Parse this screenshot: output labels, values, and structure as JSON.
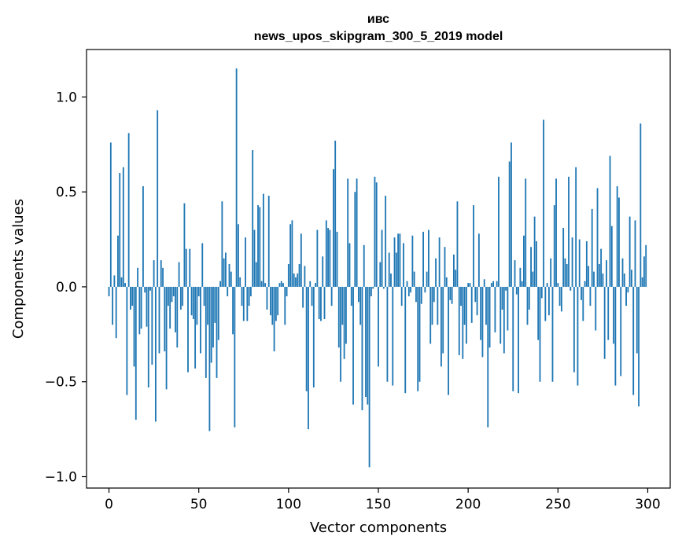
{
  "chart_data": {
    "type": "bar",
    "title_lines": [
      "ивс",
      "news_upos_skipgram_300_5_2019 model"
    ],
    "xlabel": "Vector components",
    "ylabel": "Components values",
    "xlim": [
      -12.5,
      312.5
    ],
    "ylim": [
      -1.06,
      1.25
    ],
    "xticks": [
      0,
      50,
      100,
      150,
      200,
      250,
      300
    ],
    "yticks": [
      -1.0,
      -0.5,
      0.0,
      0.5,
      1.0
    ],
    "ytick_labels": [
      "−1.0",
      "−0.5",
      "0.0",
      "0.5",
      "1.0"
    ],
    "bar_color": "#1f77b4",
    "grid": false,
    "values": [
      -0.05,
      0.76,
      -0.2,
      0.06,
      -0.27,
      0.27,
      0.6,
      0.05,
      0.63,
      0.02,
      -0.57,
      0.81,
      -0.12,
      -0.1,
      -0.42,
      -0.7,
      0.1,
      -0.25,
      -0.22,
      0.53,
      -0.03,
      -0.21,
      -0.53,
      -0.02,
      -0.41,
      0.14,
      -0.71,
      0.93,
      -0.35,
      0.14,
      0.1,
      -0.34,
      -0.54,
      -0.1,
      -0.22,
      -0.08,
      -0.05,
      -0.24,
      -0.32,
      0.13,
      -0.12,
      -0.1,
      0.44,
      0.2,
      -0.45,
      0.2,
      -0.15,
      -0.17,
      -0.43,
      -0.2,
      -0.05,
      -0.35,
      0.23,
      -0.1,
      -0.48,
      -0.2,
      -0.76,
      -0.4,
      -0.32,
      -0.19,
      -0.48,
      -0.28,
      0.03,
      0.45,
      0.15,
      0.18,
      -0.05,
      0.12,
      0.08,
      -0.25,
      -0.74,
      1.15,
      0.33,
      0.05,
      -0.1,
      -0.18,
      0.26,
      -0.18,
      -0.1,
      -0.05,
      0.72,
      0.3,
      0.13,
      0.43,
      0.42,
      0.03,
      0.49,
      0.02,
      -0.12,
      0.48,
      -0.15,
      -0.2,
      -0.34,
      -0.18,
      -0.15,
      0.02,
      0.03,
      0.02,
      -0.2,
      -0.05,
      0.12,
      0.33,
      0.35,
      0.07,
      0.05,
      0.07,
      0.12,
      0.28,
      -0.11,
      0.11,
      -0.55,
      -0.75,
      0.03,
      -0.1,
      -0.53,
      0.02,
      0.3,
      -0.17,
      -0.18,
      0.16,
      -0.17,
      0.35,
      0.31,
      0.3,
      -0.1,
      0.62,
      0.77,
      0.29,
      -0.32,
      -0.5,
      -0.2,
      -0.38,
      -0.3,
      0.57,
      0.23,
      -0.1,
      -0.62,
      0.5,
      0.57,
      -0.08,
      -0.2,
      -0.65,
      0.22,
      -0.58,
      -0.62,
      -0.95,
      -0.05,
      -0.01,
      0.58,
      0.55,
      -0.42,
      0.13,
      0.3,
      -0.01,
      0.48,
      -0.5,
      0.18,
      0.07,
      -0.52,
      0.26,
      0.18,
      0.28,
      0.28,
      -0.1,
      0.23,
      -0.56,
      0.03,
      -0.05,
      -0.03,
      0.27,
      0.08,
      -0.08,
      -0.55,
      -0.5,
      -0.09,
      0.29,
      -0.03,
      0.08,
      0.3,
      -0.3,
      -0.2,
      -0.08,
      0.15,
      -0.2,
      0.26,
      -0.42,
      -0.35,
      0.21,
      0.05,
      -0.57,
      -0.07,
      -0.09,
      0.17,
      0.09,
      0.45,
      -0.36,
      -0.1,
      -0.38,
      -0.2,
      -0.3,
      0.02,
      0.02,
      -0.19,
      0.43,
      -0.08,
      -0.15,
      0.28,
      -0.28,
      -0.37,
      0.04,
      -0.2,
      -0.74,
      -0.32,
      0.02,
      0.03,
      -0.24,
      0.03,
      0.58,
      -0.3,
      -0.12,
      -0.35,
      -0.02,
      -0.23,
      0.66,
      0.76,
      -0.55,
      0.14,
      -0.04,
      -0.56,
      0.1,
      0.03,
      0.27,
      0.57,
      -0.2,
      -0.12,
      0.21,
      0.08,
      0.37,
      0.24,
      -0.28,
      -0.5,
      -0.06,
      0.88,
      -0.18,
      0.02,
      -0.15,
      0.15,
      -0.5,
      0.43,
      0.57,
      0.02,
      -0.1,
      -0.13,
      0.31,
      0.15,
      0.12,
      0.58,
      -0.02,
      0.26,
      -0.45,
      0.63,
      -0.52,
      0.25,
      -0.07,
      -0.18,
      0.03,
      0.24,
      0.11,
      -0.1,
      0.41,
      0.08,
      -0.23,
      0.52,
      0.12,
      0.2,
      0.07,
      -0.38,
      0.14,
      -0.28,
      0.69,
      0.32,
      -0.3,
      -0.52,
      0.53,
      0.47,
      -0.47,
      0.15,
      0.07,
      -0.1,
      -0.03,
      0.37,
      0.09,
      -0.57,
      0.35,
      -0.35,
      -0.63,
      0.86,
      0.05,
      0.16,
      0.22
    ]
  }
}
